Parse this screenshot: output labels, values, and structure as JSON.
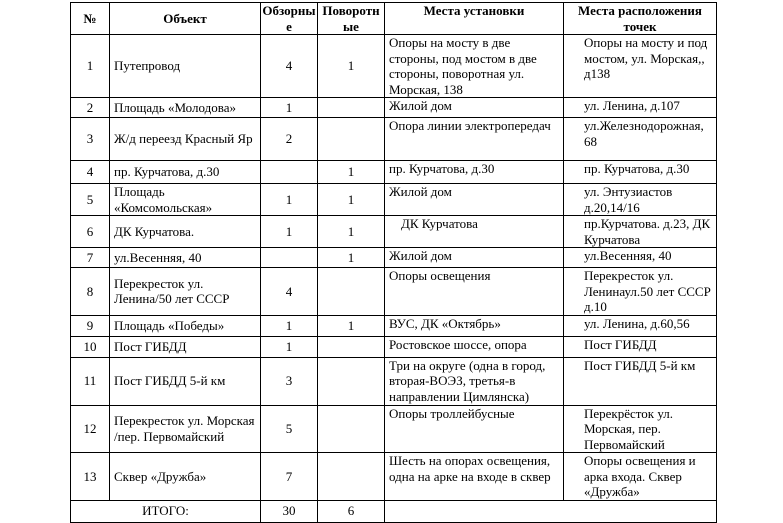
{
  "headers": [
    "№",
    "Объект",
    "Обзорные",
    "Поворотные",
    "Места установки",
    "Места расположения точек"
  ],
  "rows": [
    {
      "n": "1",
      "obj": "Путепровод",
      "obz": "4",
      "pov": "1",
      "install": "Опоры на мосту в две стороны, под мостом в две стороны, поворотная ул. Морская, 138",
      "loc": "Опоры на мосту и под мостом, ул. Морская,, д138"
    },
    {
      "n": "2",
      "obj": "Площадь «Молодова»",
      "obz": "1",
      "pov": "",
      "install": "Жилой дом",
      "loc": "ул. Ленина, д.107"
    },
    {
      "n": "3",
      "obj": "Ж/д переезд Красный Яр",
      "obz": "2",
      "pov": "",
      "install": "Опора линии электропередач",
      "loc": "ул.Железнодорожная, 68"
    },
    {
      "n": "4",
      "obj": "пр. Курчатова, д.30",
      "obz": "",
      "pov": "1",
      "install": "пр. Курчатова, д.30",
      "loc": "пр. Курчатова, д.30"
    },
    {
      "n": "5",
      "obj": "Площадь «Комсомольская»",
      "obz": "1",
      "pov": "1",
      "install": "Жилой дом",
      "loc": "ул. Энтузиастов д.20,14/16"
    },
    {
      "n": "6",
      "obj": "ДК Курчатова.",
      "obz": "1",
      "pov": "1",
      "install": "ДК Курчатова",
      "loc": "пр.Курчатова. д.23, ДК Курчатова"
    },
    {
      "n": "7",
      "obj": "ул.Весенняя, 40",
      "obz": "",
      "pov": "1",
      "install": "Жилой дом",
      "loc": "ул.Весенняя, 40"
    },
    {
      "n": "8",
      "obj": "Перекресток ул. Ленина/50 лет СССР",
      "obz": "4",
      "pov": "",
      "install": "Опоры освещения",
      "loc": "Перекресток ул. Ленинаул.50 лет СССР д.10"
    },
    {
      "n": "9",
      "obj": "Площадь «Победы»",
      "obz": "1",
      "pov": "1",
      "install": "ВУС, ДК «Октябрь»",
      "loc": "ул. Ленина, д.60,56"
    },
    {
      "n": "10",
      "obj": "Пост ГИБДД",
      "obz": "1",
      "pov": "",
      "install": "Ростовское шоссе, опора",
      "loc": "Пост ГИБДД"
    },
    {
      "n": "11",
      "obj": "Пост ГИБДД 5-й км",
      "obz": "3",
      "pov": "",
      "install": "Три на округе (одна в город, вторая-ВОЭЗ, третья-в направлении Цимлянска)",
      "loc": "Пост ГИБДД 5-й км"
    },
    {
      "n": "12",
      "obj": "Перекресток ул. Морская /пер. Первомайский",
      "obz": "5",
      "pov": "",
      "install": "Опоры троллейбусные",
      "loc": "Перекрёсток ул. Морская, пер. Первомайский"
    },
    {
      "n": "13",
      "obj": "Сквер «Дружба»",
      "obz": "7",
      "pov": "",
      "install": "Шесть на опорах освещения, одна на арке на входе в сквер",
      "loc": "Опоры освещения и арка входа. Сквер «Дружба»"
    }
  ],
  "total": {
    "label": "ИТОГО:",
    "obz": "30",
    "pov": "6"
  }
}
